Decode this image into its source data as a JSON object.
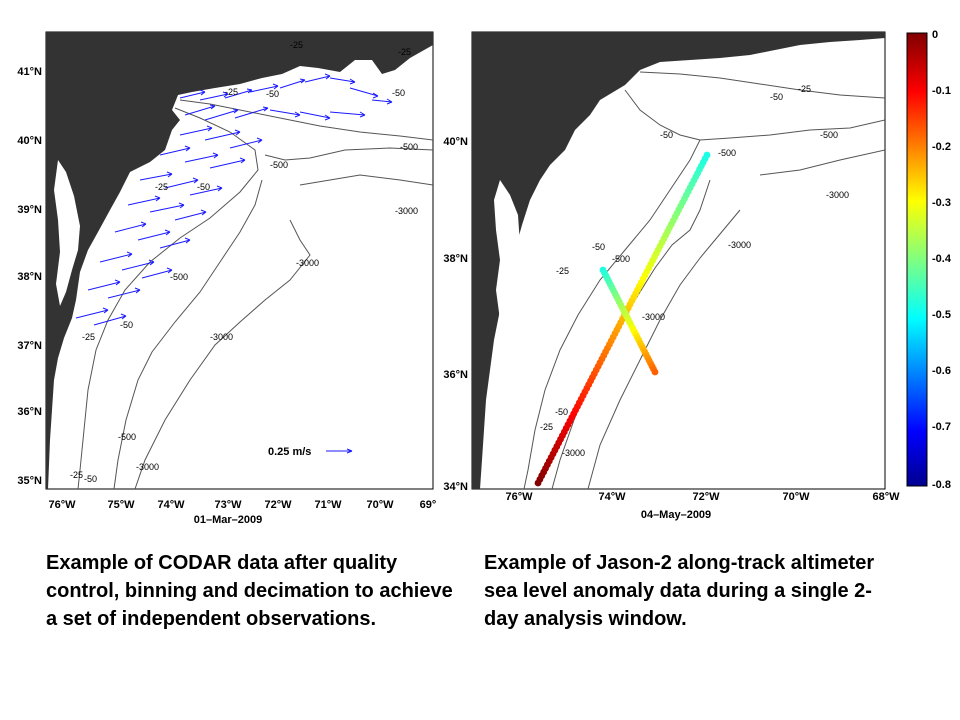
{
  "left_map": {
    "lat_ticks": [
      "41°N",
      "40°N",
      "39°N",
      "38°N",
      "37°N",
      "36°N",
      "35°N"
    ],
    "lon_ticks": [
      "76°W",
      "75°W",
      "74°W",
      "73°W",
      "72°W",
      "71°W",
      "70°W",
      "69°"
    ],
    "date": "01–Mar–2009",
    "scale_label": "0.25 m/s",
    "contours": [
      "-25",
      "-50",
      "-500",
      "-3000"
    ],
    "vector_color": "#1a1aff"
  },
  "right_map": {
    "lat_ticks": [
      "40°N",
      "38°N",
      "36°N",
      "34°N"
    ],
    "lon_ticks": [
      "76°W",
      "74°W",
      "72°W",
      "70°W",
      "68°W"
    ],
    "date": "04–May–2009",
    "contours": [
      "-25",
      "-50",
      "-500",
      "-3000"
    ]
  },
  "colorbar": {
    "ticks": [
      "0",
      "-0.1",
      "-0.2",
      "-0.3",
      "-0.4",
      "-0.5",
      "-0.6",
      "-0.7",
      "-0.8"
    ],
    "range": [
      -0.8,
      0
    ]
  },
  "captions": {
    "left": "Example of CODAR data after quality control, binning and decimation to achieve a set of independent observations.",
    "right": "Example of Jason-2 along-track altimeter sea level anomaly data during a single 2-day analysis window."
  }
}
